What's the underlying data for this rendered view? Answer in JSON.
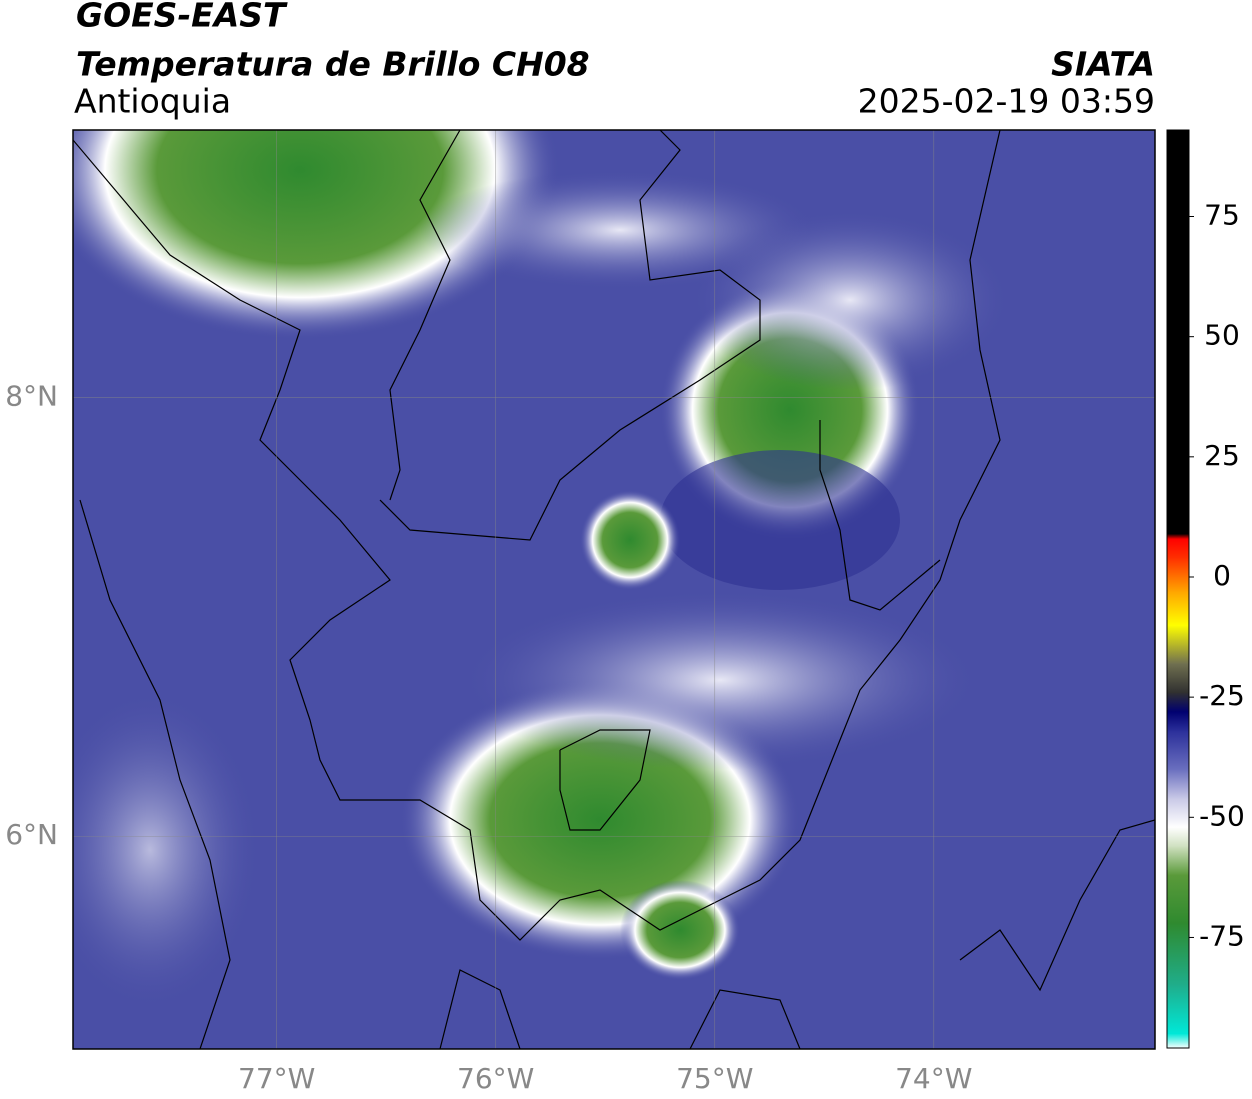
{
  "header": {
    "title": "GOES-EAST",
    "subtitle": "Temperatura de Brillo CH08",
    "region": "Antioquia",
    "source": "SIATA",
    "timestamp": "2025-02-19 03:59"
  },
  "map": {
    "xlim": [
      -77.93,
      -72.99
    ],
    "ylim": [
      5.03,
      9.22
    ],
    "xticks": [
      {
        "value": -77,
        "label": "77°W"
      },
      {
        "value": -76,
        "label": "76°W"
      },
      {
        "value": -75,
        "label": "75°W"
      },
      {
        "value": -74,
        "label": "74°W"
      }
    ],
    "yticks": [
      {
        "value": 6,
        "label": "6°N"
      },
      {
        "value": 8,
        "label": "8°N"
      }
    ],
    "grid": true
  },
  "colorbar": {
    "clim": [
      -98,
      93
    ],
    "ticks": [
      -75,
      -50,
      -25,
      0,
      25,
      50,
      75
    ],
    "stops": [
      {
        "value": -98,
        "color": "#ffffff"
      },
      {
        "value": -95,
        "color": "#00e8d8"
      },
      {
        "value": -85,
        "color": "#1fae8c"
      },
      {
        "value": -72,
        "color": "#2f8a2f"
      },
      {
        "value": -62,
        "color": "#5a9a3a"
      },
      {
        "value": -56,
        "color": "#cfe0c0"
      },
      {
        "value": -52,
        "color": "#ffffff"
      },
      {
        "value": -46,
        "color": "#c8c8e6"
      },
      {
        "value": -40,
        "color": "#6a6fbf"
      },
      {
        "value": -32,
        "color": "#2b2f9a"
      },
      {
        "value": -28,
        "color": "#000070"
      },
      {
        "value": -24,
        "color": "#303030"
      },
      {
        "value": -18,
        "color": "#707050"
      },
      {
        "value": -10,
        "color": "#ffff00"
      },
      {
        "value": -3,
        "color": "#ffa500"
      },
      {
        "value": 4,
        "color": "#ff3000"
      },
      {
        "value": 8,
        "color": "#ff0000"
      },
      {
        "value": 9,
        "color": "#000000"
      },
      {
        "value": 93,
        "color": "#000000"
      }
    ]
  }
}
